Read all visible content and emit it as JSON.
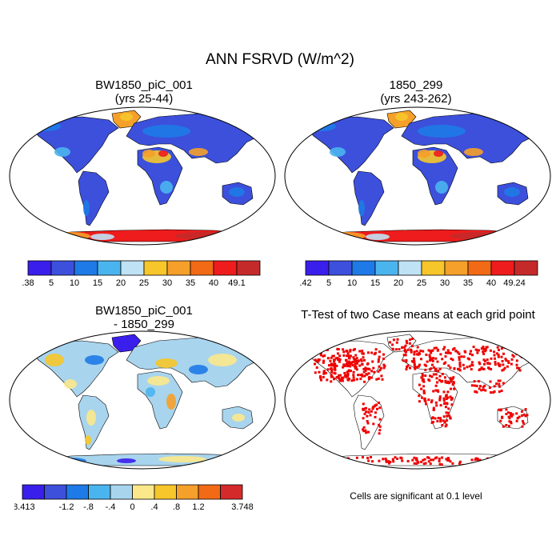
{
  "main_title": "ANN FSRVD (W/m^2)",
  "chart_data": [
    {
      "type": "heatmap",
      "projection": "Robinson",
      "title": "BW1850_piC_001",
      "subtitle": "(yrs 25-44)",
      "colorbar": {
        "tick_labels": [
          ".38",
          "5",
          "10",
          "15",
          "20",
          "25",
          "30",
          "35",
          "40",
          "49.1"
        ],
        "colors": [
          "#3a1eeb",
          "#3c50dc",
          "#1e7ae6",
          "#4ab4ee",
          "#bfe3f5",
          "#f6c62a",
          "#f5a02a",
          "#f26a15",
          "#ee1c1c",
          "#c52a2a"
        ]
      }
    },
    {
      "type": "heatmap",
      "projection": "Robinson",
      "title": "1850_299",
      "subtitle": "(yrs 243-262)",
      "colorbar": {
        "tick_labels": [
          ".42",
          "5",
          "10",
          "15",
          "20",
          "25",
          "30",
          "35",
          "40",
          "49.24"
        ],
        "colors": [
          "#3a1eeb",
          "#3c50dc",
          "#1e7ae6",
          "#4ab4ee",
          "#bfe3f5",
          "#f6c62a",
          "#f5a02a",
          "#f26a15",
          "#ee1c1c",
          "#c52a2a"
        ]
      }
    },
    {
      "type": "heatmap",
      "projection": "Robinson",
      "title": "BW1850_piC_001",
      "subtitle": "- 1850_299",
      "colorbar": {
        "tick_labels": [
          "-8.413",
          "",
          "-1.2",
          "-.8",
          "-.4",
          "0",
          ".4",
          ".8",
          "1.2",
          "",
          "3.748"
        ],
        "colors": [
          "#3a1eeb",
          "#3c50dc",
          "#1e7ae6",
          "#4ab4ee",
          "#a8d4ee",
          "#fbe88a",
          "#f6c62a",
          "#f5a02a",
          "#f26a15",
          "#d42a2a"
        ]
      }
    },
    {
      "type": "heatmap",
      "projection": "Robinson",
      "title": "T-Test of two Case means at each grid point",
      "note": "Cells are significant at 0.1 level",
      "mark_color": "#ee0000"
    }
  ]
}
